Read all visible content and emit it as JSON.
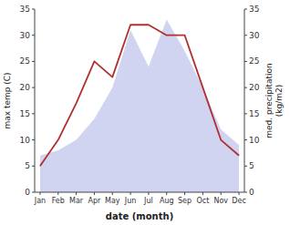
{
  "chart_data": {
    "type": "line",
    "categories": [
      "Jan",
      "Feb",
      "Mar",
      "Apr",
      "May",
      "Jun",
      "Jul",
      "Aug",
      "Sep",
      "Oct",
      "Nov",
      "Dec"
    ],
    "series": [
      {
        "type": "area",
        "axis": "y2",
        "color": "#b0b8e8",
        "values": [
          7,
          8,
          10,
          14,
          20,
          31,
          24,
          33,
          27,
          20,
          12,
          9
        ]
      },
      {
        "type": "line",
        "color": "#b03030",
        "values": [
          5,
          10,
          17,
          25,
          22,
          32,
          32,
          30,
          30,
          20,
          10,
          7
        ]
      }
    ],
    "xlabel": "date (month)",
    "ylabel": "max temp (C)",
    "y2label": "med. precipitation\n(kg/m2)",
    "ylim": [
      0,
      35
    ],
    "yticks": [
      0,
      5,
      10,
      15,
      20,
      25,
      30,
      35
    ],
    "y2lim": [
      0,
      35
    ],
    "y2ticks": [
      0,
      5,
      10,
      15,
      20,
      25,
      30,
      35
    ]
  }
}
